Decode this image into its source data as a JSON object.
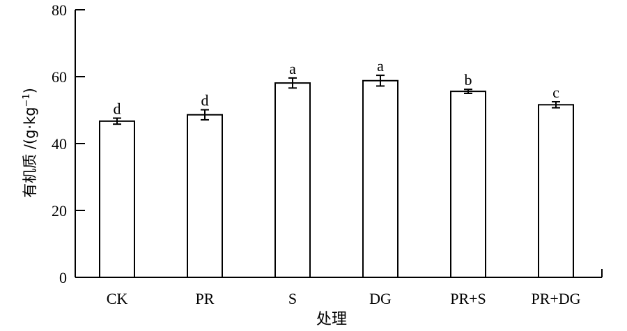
{
  "chart_data": {
    "type": "bar",
    "categories": [
      "CK",
      "PR",
      "S",
      "DG",
      "PR+S",
      "PR+DG"
    ],
    "values": [
      46.7,
      48.6,
      58.1,
      58.8,
      55.6,
      51.6
    ],
    "errors": [
      0.9,
      1.5,
      1.5,
      1.6,
      0.6,
      0.9
    ],
    "significance_letters": [
      "d",
      "d",
      "a",
      "a",
      "b",
      "c"
    ],
    "title": "",
    "xlabel": "处理",
    "ylabel_main": "有机质 /(g·kg",
    "ylabel_sup": "−1",
    "ylabel_close": ")",
    "ylim": [
      0,
      80
    ],
    "yticks": [
      0,
      20,
      40,
      60,
      80
    ],
    "grid": false,
    "bar_fill": "#ffffff",
    "bar_stroke": "#000000"
  }
}
